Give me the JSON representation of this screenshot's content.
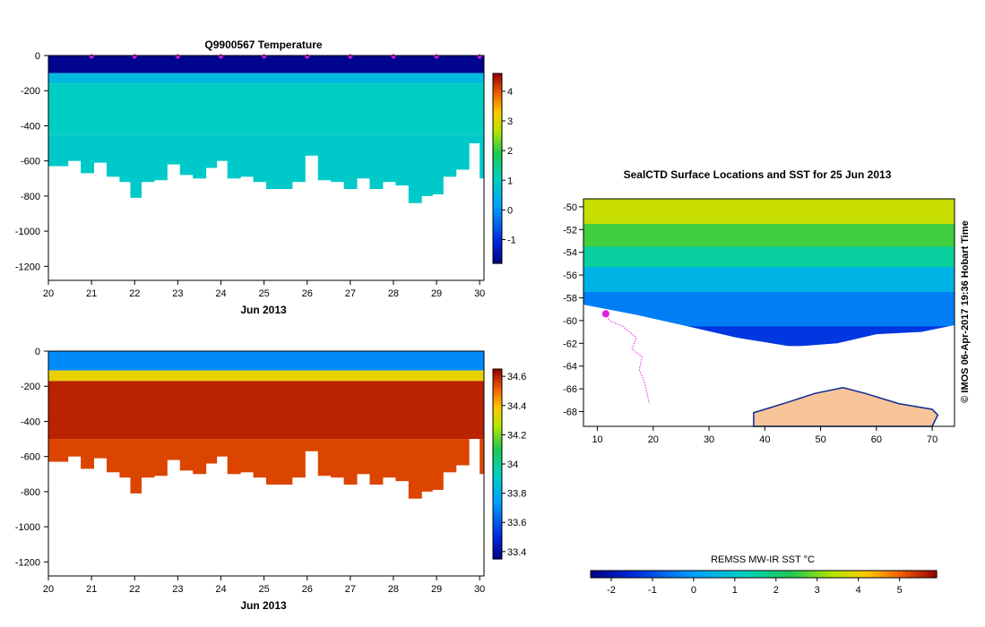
{
  "chart_data": [
    {
      "type": "heatmap",
      "title": "Q9900567  Temperature",
      "xlabel": "Jun 2013",
      "x_ticks": [
        "20",
        "21",
        "22",
        "23",
        "24",
        "25",
        "26",
        "27",
        "28",
        "29",
        "30"
      ],
      "xlim": [
        20,
        30.1
      ],
      "ylim": [
        -1280,
        0
      ],
      "y_ticks": [
        0,
        -200,
        -400,
        -600,
        -800,
        -1000,
        -1200
      ],
      "y_tick_labels": [
        "0",
        "-200",
        "-400",
        "-600",
        "-800",
        "-1000",
        "-1200"
      ],
      "colorbar_range": [
        -1.8,
        4.6
      ],
      "colorbar_ticks": [
        -1,
        0,
        1,
        2,
        3,
        4
      ],
      "colorbar_tick_labels": [
        "-1",
        "0",
        "1",
        "2",
        "3",
        "4"
      ],
      "layers": [
        {
          "top": 0,
          "bottom": -100,
          "value": -1.7
        },
        {
          "top": -100,
          "bottom": -160,
          "value": 0.6
        },
        {
          "top": -160,
          "bottom": -450,
          "value": 1.0
        },
        {
          "top": -450,
          "bottom": -900,
          "value": 0.9
        }
      ],
      "profile_days": [
        20.3,
        20.6,
        20.9,
        21.2,
        21.5,
        21.8,
        22.0,
        22.3,
        22.6,
        22.9,
        23.2,
        23.5,
        23.8,
        24.0,
        24.3,
        24.6,
        24.9,
        25.2,
        25.5,
        25.8,
        26.1,
        26.4,
        26.7,
        27.0,
        27.3,
        27.6,
        27.9,
        28.2,
        28.5,
        28.8,
        29.0,
        29.3,
        29.6,
        29.9,
        30.1
      ],
      "profile_max_depths": [
        -630,
        -600,
        -670,
        -610,
        -690,
        -720,
        -810,
        -720,
        -710,
        -620,
        -680,
        -700,
        -640,
        -600,
        -700,
        -690,
        -720,
        -760,
        -760,
        -720,
        -570,
        -710,
        -720,
        -760,
        -700,
        -760,
        -720,
        -740,
        -840,
        -800,
        -790,
        -690,
        -650,
        -500,
        -700
      ],
      "profile_markers_days": [
        21,
        22,
        23,
        24,
        25,
        26,
        27,
        28,
        29,
        30
      ]
    },
    {
      "type": "heatmap",
      "title": "",
      "xlabel": "Jun 2013",
      "x_ticks": [
        "20",
        "21",
        "22",
        "23",
        "24",
        "25",
        "26",
        "27",
        "28",
        "29",
        "30"
      ],
      "xlim": [
        20,
        30.1
      ],
      "ylim": [
        -1280,
        0
      ],
      "y_ticks": [
        0,
        -200,
        -400,
        -600,
        -800,
        -1000,
        -1200
      ],
      "y_tick_labels": [
        "0",
        "-200",
        "-400",
        "-600",
        "-800",
        "-1000",
        "-1200"
      ],
      "colorbar_range": [
        33.35,
        34.65
      ],
      "colorbar_ticks": [
        33.4,
        33.6,
        33.8,
        34,
        34.2,
        34.4,
        34.6
      ],
      "colorbar_tick_labels": [
        "33.4",
        "33.6",
        "33.8",
        "34",
        "34.2",
        "34.4",
        "34.6"
      ],
      "layers": [
        {
          "top": 0,
          "bottom": -110,
          "value": 33.7
        },
        {
          "top": -110,
          "bottom": -170,
          "value": 34.35
        },
        {
          "top": -170,
          "bottom": -500,
          "value": 34.6
        },
        {
          "top": -500,
          "bottom": -900,
          "value": 34.55
        }
      ],
      "profile_days": [
        20.3,
        20.6,
        20.9,
        21.2,
        21.5,
        21.8,
        22.0,
        22.3,
        22.6,
        22.9,
        23.2,
        23.5,
        23.8,
        24.0,
        24.3,
        24.6,
        24.9,
        25.2,
        25.5,
        25.8,
        26.1,
        26.4,
        26.7,
        27.0,
        27.3,
        27.6,
        27.9,
        28.2,
        28.5,
        28.8,
        29.0,
        29.3,
        29.6,
        29.9,
        30.1
      ],
      "profile_max_depths": [
        -630,
        -600,
        -670,
        -610,
        -690,
        -720,
        -810,
        -720,
        -710,
        -620,
        -680,
        -700,
        -640,
        -600,
        -700,
        -690,
        -720,
        -760,
        -760,
        -720,
        -570,
        -710,
        -720,
        -760,
        -700,
        -760,
        -720,
        -740,
        -840,
        -800,
        -790,
        -690,
        -650,
        -500,
        -700
      ]
    },
    {
      "type": "heatmap",
      "title": "SealCTD Surface Locations and SST for 25 Jun 2013",
      "xlim": [
        7.5,
        74
      ],
      "ylim": [
        -69.3,
        -49.3
      ],
      "x_ticks": [
        10,
        20,
        30,
        40,
        50,
        60,
        70
      ],
      "x_tick_labels": [
        "10",
        "20",
        "30",
        "40",
        "50",
        "60",
        "70"
      ],
      "y_ticks": [
        -50,
        -52,
        -54,
        -56,
        -58,
        -60,
        -62,
        -64,
        -66,
        -68
      ],
      "y_tick_labels": [
        "-50",
        "-52",
        "-54",
        "-56",
        "-58",
        "-60",
        "-62",
        "-64",
        "-66",
        "-68"
      ],
      "sst_bands": [
        {
          "lat_top": -49.3,
          "lat_bottom": -51.5,
          "value": 3.6
        },
        {
          "lat_top": -51.5,
          "lat_bottom": -53.5,
          "value": 2.6
        },
        {
          "lat_top": -53.5,
          "lat_bottom": -55.3,
          "value": 1.6
        },
        {
          "lat_top": -55.3,
          "lat_bottom": -57.5,
          "value": 0.5
        },
        {
          "lat_top": -57.5,
          "lat_bottom": -60.5,
          "value": -0.4
        },
        {
          "lat_top": -60.5,
          "lat_bottom": -62.2,
          "value": -1.3
        }
      ],
      "ice_edge_lat": [
        -58.6,
        -59.5,
        -60.6,
        -61.5,
        -62.3,
        -62.0,
        -61.2,
        -61.0,
        -60.4
      ],
      "ice_edge_lon": [
        7.5,
        17,
        27,
        35,
        45,
        53,
        60,
        68,
        74
      ],
      "seal_track": [
        [
          11.5,
          -59.4
        ],
        [
          12.2,
          -60.0
        ],
        [
          14.5,
          -60.5
        ],
        [
          17,
          -61.5
        ],
        [
          16.2,
          -62.5
        ],
        [
          18,
          -63.2
        ],
        [
          17.5,
          -64.3
        ],
        [
          18.5,
          -65.5
        ],
        [
          19.3,
          -67.3
        ]
      ],
      "continent_polygon": [
        [
          38,
          -68.1
        ],
        [
          44,
          -67.2
        ],
        [
          49,
          -66.4
        ],
        [
          54,
          -65.9
        ],
        [
          58,
          -66.4
        ],
        [
          64,
          -67.3
        ],
        [
          70,
          -67.8
        ],
        [
          71,
          -68.3
        ],
        [
          70,
          -69.3
        ],
        [
          38,
          -69.3
        ]
      ],
      "colorbar_label": "REMSS MW-IR SST °C",
      "colorbar_range": [
        -2.5,
        5.9
      ],
      "colorbar_ticks": [
        -2,
        -1,
        0,
        1,
        2,
        3,
        4,
        5
      ],
      "colorbar_tick_labels": [
        "-2",
        "-1",
        "0",
        "1",
        "2",
        "3",
        "4",
        "5"
      ],
      "side_label": "© IMOS 06-Apr-2017 19:36 Hobart Time"
    }
  ],
  "colors": {
    "land": "#f8c49a",
    "track": "#e020e0",
    "marker": "#e020e0"
  }
}
